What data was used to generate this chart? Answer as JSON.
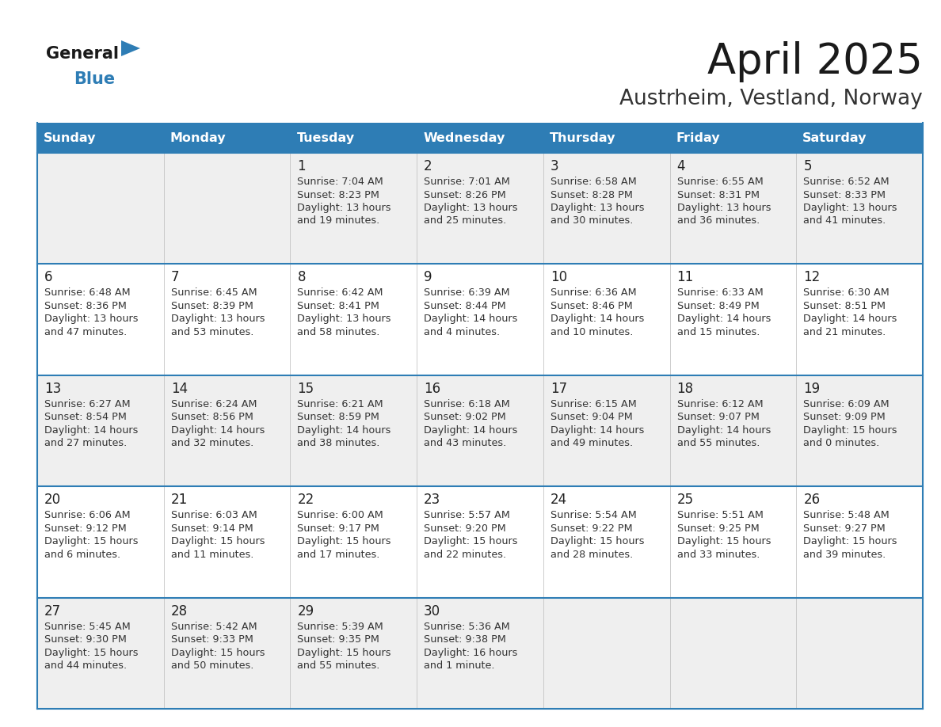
{
  "title": "April 2025",
  "subtitle": "Austrheim, Vestland, Norway",
  "header_bg": "#2E7DB5",
  "header_text_color": "#FFFFFF",
  "day_names": [
    "Sunday",
    "Monday",
    "Tuesday",
    "Wednesday",
    "Thursday",
    "Friday",
    "Saturday"
  ],
  "row_bg_even": "#EFEFEF",
  "row_bg_odd": "#FFFFFF",
  "cell_text_color": "#333333",
  "day_num_color": "#222222",
  "grid_line_color": "#2E7DB5",
  "logo_general_color": "#1a1a1a",
  "logo_blue_color": "#2E7DB5",
  "logo_triangle_color": "#2E7DB5",
  "calendar_data": [
    [
      {
        "day": null,
        "sunrise": null,
        "sunset": null,
        "daylight": null
      },
      {
        "day": null,
        "sunrise": null,
        "sunset": null,
        "daylight": null
      },
      {
        "day": 1,
        "sunrise": "7:04 AM",
        "sunset": "8:23 PM",
        "daylight": "13 hours\nand 19 minutes."
      },
      {
        "day": 2,
        "sunrise": "7:01 AM",
        "sunset": "8:26 PM",
        "daylight": "13 hours\nand 25 minutes."
      },
      {
        "day": 3,
        "sunrise": "6:58 AM",
        "sunset": "8:28 PM",
        "daylight": "13 hours\nand 30 minutes."
      },
      {
        "day": 4,
        "sunrise": "6:55 AM",
        "sunset": "8:31 PM",
        "daylight": "13 hours\nand 36 minutes."
      },
      {
        "day": 5,
        "sunrise": "6:52 AM",
        "sunset": "8:33 PM",
        "daylight": "13 hours\nand 41 minutes."
      }
    ],
    [
      {
        "day": 6,
        "sunrise": "6:48 AM",
        "sunset": "8:36 PM",
        "daylight": "13 hours\nand 47 minutes."
      },
      {
        "day": 7,
        "sunrise": "6:45 AM",
        "sunset": "8:39 PM",
        "daylight": "13 hours\nand 53 minutes."
      },
      {
        "day": 8,
        "sunrise": "6:42 AM",
        "sunset": "8:41 PM",
        "daylight": "13 hours\nand 58 minutes."
      },
      {
        "day": 9,
        "sunrise": "6:39 AM",
        "sunset": "8:44 PM",
        "daylight": "14 hours\nand 4 minutes."
      },
      {
        "day": 10,
        "sunrise": "6:36 AM",
        "sunset": "8:46 PM",
        "daylight": "14 hours\nand 10 minutes."
      },
      {
        "day": 11,
        "sunrise": "6:33 AM",
        "sunset": "8:49 PM",
        "daylight": "14 hours\nand 15 minutes."
      },
      {
        "day": 12,
        "sunrise": "6:30 AM",
        "sunset": "8:51 PM",
        "daylight": "14 hours\nand 21 minutes."
      }
    ],
    [
      {
        "day": 13,
        "sunrise": "6:27 AM",
        "sunset": "8:54 PM",
        "daylight": "14 hours\nand 27 minutes."
      },
      {
        "day": 14,
        "sunrise": "6:24 AM",
        "sunset": "8:56 PM",
        "daylight": "14 hours\nand 32 minutes."
      },
      {
        "day": 15,
        "sunrise": "6:21 AM",
        "sunset": "8:59 PM",
        "daylight": "14 hours\nand 38 minutes."
      },
      {
        "day": 16,
        "sunrise": "6:18 AM",
        "sunset": "9:02 PM",
        "daylight": "14 hours\nand 43 minutes."
      },
      {
        "day": 17,
        "sunrise": "6:15 AM",
        "sunset": "9:04 PM",
        "daylight": "14 hours\nand 49 minutes."
      },
      {
        "day": 18,
        "sunrise": "6:12 AM",
        "sunset": "9:07 PM",
        "daylight": "14 hours\nand 55 minutes."
      },
      {
        "day": 19,
        "sunrise": "6:09 AM",
        "sunset": "9:09 PM",
        "daylight": "15 hours\nand 0 minutes."
      }
    ],
    [
      {
        "day": 20,
        "sunrise": "6:06 AM",
        "sunset": "9:12 PM",
        "daylight": "15 hours\nand 6 minutes."
      },
      {
        "day": 21,
        "sunrise": "6:03 AM",
        "sunset": "9:14 PM",
        "daylight": "15 hours\nand 11 minutes."
      },
      {
        "day": 22,
        "sunrise": "6:00 AM",
        "sunset": "9:17 PM",
        "daylight": "15 hours\nand 17 minutes."
      },
      {
        "day": 23,
        "sunrise": "5:57 AM",
        "sunset": "9:20 PM",
        "daylight": "15 hours\nand 22 minutes."
      },
      {
        "day": 24,
        "sunrise": "5:54 AM",
        "sunset": "9:22 PM",
        "daylight": "15 hours\nand 28 minutes."
      },
      {
        "day": 25,
        "sunrise": "5:51 AM",
        "sunset": "9:25 PM",
        "daylight": "15 hours\nand 33 minutes."
      },
      {
        "day": 26,
        "sunrise": "5:48 AM",
        "sunset": "9:27 PM",
        "daylight": "15 hours\nand 39 minutes."
      }
    ],
    [
      {
        "day": 27,
        "sunrise": "5:45 AM",
        "sunset": "9:30 PM",
        "daylight": "15 hours\nand 44 minutes."
      },
      {
        "day": 28,
        "sunrise": "5:42 AM",
        "sunset": "9:33 PM",
        "daylight": "15 hours\nand 50 minutes."
      },
      {
        "day": 29,
        "sunrise": "5:39 AM",
        "sunset": "9:35 PM",
        "daylight": "15 hours\nand 55 minutes."
      },
      {
        "day": 30,
        "sunrise": "5:36 AM",
        "sunset": "9:38 PM",
        "daylight": "16 hours\nand 1 minute."
      },
      {
        "day": null,
        "sunrise": null,
        "sunset": null,
        "daylight": null
      },
      {
        "day": null,
        "sunrise": null,
        "sunset": null,
        "daylight": null
      },
      {
        "day": null,
        "sunrise": null,
        "sunset": null,
        "daylight": null
      }
    ]
  ]
}
